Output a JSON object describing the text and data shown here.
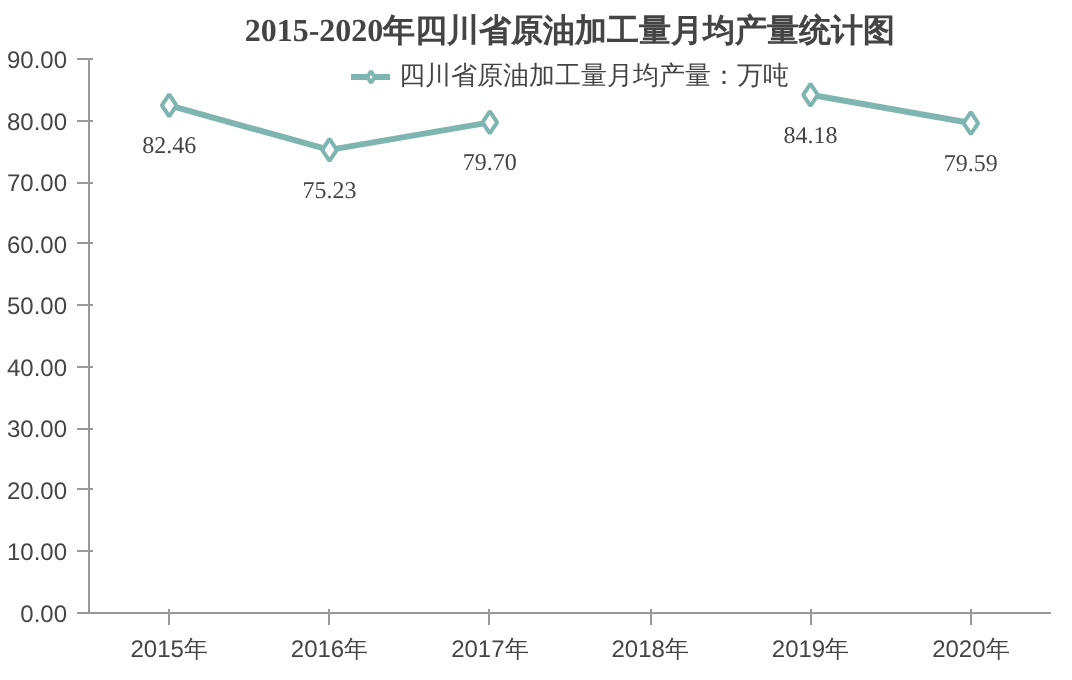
{
  "chart_data": {
    "type": "line",
    "title": "2015-2020年四川省原油加工量月均产量统计图",
    "categories": [
      "2015年",
      "2016年",
      "2017年",
      "2018年",
      "2019年",
      "2020年"
    ],
    "series": [
      {
        "name": "四川省原油加工量月均产量：万吨",
        "color": "#7fb5b0",
        "values": [
          82.46,
          75.23,
          79.7,
          null,
          84.18,
          79.59
        ],
        "value_labels": [
          "82.46",
          "75.23",
          "79.70",
          null,
          "84.18",
          "79.59"
        ]
      }
    ],
    "ylim": [
      0,
      90
    ],
    "yticks": [
      {
        "value": 0,
        "label": "0.00"
      },
      {
        "value": 10,
        "label": "10.00"
      },
      {
        "value": 20,
        "label": "20.00"
      },
      {
        "value": 30,
        "label": "30.00"
      },
      {
        "value": 40,
        "label": "40.00"
      },
      {
        "value": 50,
        "label": "50.00"
      },
      {
        "value": 60,
        "label": "60.00"
      },
      {
        "value": 70,
        "label": "70.00"
      },
      {
        "value": 80,
        "label": "80.00"
      },
      {
        "value": 90,
        "label": "90.00"
      }
    ],
    "grid": false,
    "legend": "top",
    "marker": "diamond",
    "line_style": "solid"
  }
}
